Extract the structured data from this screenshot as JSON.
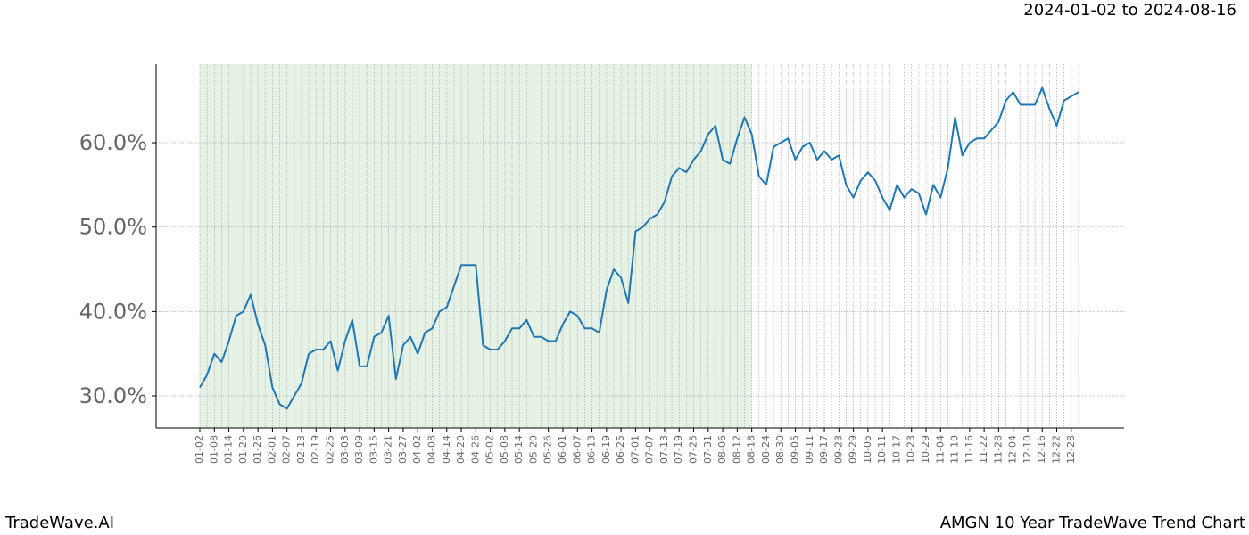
{
  "chart_data": {
    "type": "line",
    "title": "2024-01-02 to 2024-08-16",
    "footer_left": "TradeWave.AI",
    "footer_right": "AMGN 10 Year TradeWave Trend Chart",
    "categories": [
      "01-02",
      null,
      "01-08",
      null,
      "01-14",
      null,
      "01-20",
      null,
      "01-26",
      null,
      "02-01",
      null,
      "02-07",
      null,
      "02-13",
      null,
      "02-19",
      null,
      "02-25",
      null,
      "03-03",
      null,
      "03-09",
      null,
      "03-15",
      null,
      "03-21",
      null,
      "03-27",
      null,
      "04-02",
      null,
      "04-08",
      null,
      "04-14",
      null,
      "04-20",
      null,
      "04-26",
      null,
      "05-02",
      null,
      "05-08",
      null,
      "05-14",
      null,
      "05-20",
      null,
      "05-26",
      null,
      "06-01",
      null,
      "06-07",
      null,
      "06-13",
      null,
      "06-19",
      null,
      "06-25",
      null,
      "07-01",
      null,
      "07-07",
      null,
      "07-13",
      null,
      "07-19",
      null,
      "07-25",
      null,
      "07-31",
      null,
      "08-06",
      null,
      "08-12",
      null,
      "08-18",
      null,
      "08-24",
      null,
      "08-30",
      null,
      "09-05",
      null,
      "09-11",
      null,
      "09-17",
      null,
      "09-23",
      null,
      "09-29",
      null,
      "10-05",
      null,
      "10-11",
      null,
      "10-17",
      null,
      "10-23",
      null,
      "10-29",
      null,
      "11-04",
      null,
      "11-10",
      null,
      "11-16",
      null,
      "11-22",
      null,
      "11-28",
      null,
      "12-04",
      null,
      "12-10",
      null,
      "12-16",
      null,
      "12-22",
      null,
      "12-28",
      null
    ],
    "series": [
      {
        "color": "#1f77b4",
        "values": [
          31,
          32.5,
          35,
          34,
          36.5,
          39.5,
          40,
          42,
          38.5,
          36,
          31,
          29,
          28.5,
          30,
          31.5,
          35,
          35.5,
          35.5,
          36.5,
          33,
          36.5,
          39,
          33.5,
          33.5,
          37,
          37.5,
          39.5,
          32,
          36,
          37,
          35,
          37.5,
          38,
          40,
          40.5,
          43,
          45.5,
          45.5,
          45.5,
          36,
          35.5,
          35.5,
          36.5,
          38,
          38,
          39,
          37,
          37,
          36.5,
          36.5,
          38.5,
          40,
          39.5,
          38,
          38,
          37.5,
          42.5,
          45,
          44,
          41,
          49.5,
          50,
          51,
          51.5,
          53,
          56,
          57,
          56.5,
          58,
          59,
          61,
          62,
          58,
          57.5,
          60.5,
          63,
          61,
          56,
          55,
          59.5,
          60,
          60.5,
          58,
          59.5,
          60,
          58,
          59,
          58,
          58.5,
          55,
          53.5,
          55.5,
          56.5,
          55.5,
          53.5,
          52,
          55,
          53.5,
          54.5,
          54,
          51.5,
          55,
          53.5,
          57,
          63,
          58.5,
          60,
          60.5,
          60.5,
          61.5,
          62.5,
          65,
          66,
          64.5,
          64.5,
          64.5,
          66.5,
          64,
          62,
          65,
          65.5,
          66
        ]
      }
    ],
    "ylim": [
      26.2,
      69.3
    ],
    "yticks": [
      {
        "value": 30,
        "label": "30.0%"
      },
      {
        "value": 40,
        "label": "40.0%"
      },
      {
        "value": 50,
        "label": "50.0%"
      },
      {
        "value": 60,
        "label": "60.0%"
      }
    ],
    "grid": true,
    "shade": {
      "from": "01-02",
      "to": "08-18",
      "color": "#e6f2e6"
    }
  }
}
